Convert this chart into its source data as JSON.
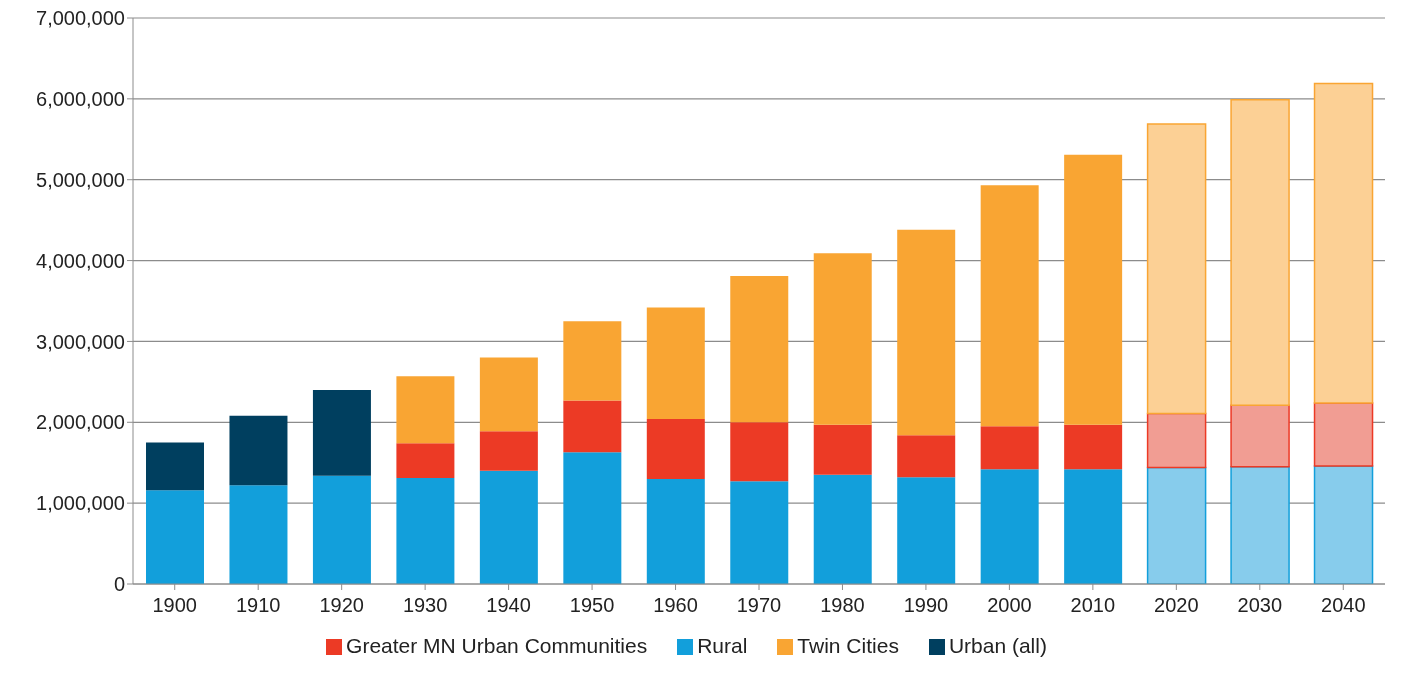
{
  "chart_data": {
    "type": "bar",
    "stacked": true,
    "categories": [
      "1900",
      "1910",
      "1920",
      "1930",
      "1940",
      "1950",
      "1960",
      "1970",
      "1980",
      "1990",
      "2000",
      "2010",
      "2020",
      "2030",
      "2040"
    ],
    "series": [
      {
        "name": "Rural",
        "color": "#129fdb",
        "colors": [
          "#129fdb",
          "#129fdb",
          "#129fdb",
          "#129fdb",
          "#129fdb",
          "#129fdb",
          "#129fdb",
          "#129fdb",
          "#129fdb",
          "#129fdb",
          "#129fdb",
          "#129fdb",
          "#87ccec",
          "#87ccec",
          "#87ccec"
        ],
        "values": [
          1160000,
          1220000,
          1340000,
          1310000,
          1400000,
          1630000,
          1300000,
          1270000,
          1350000,
          1320000,
          1420000,
          1420000,
          1440000,
          1450000,
          1460000
        ]
      },
      {
        "name": "Urban (all)",
        "color": "#003f5f",
        "values": [
          590000,
          860000,
          1060000,
          null,
          null,
          null,
          null,
          null,
          null,
          null,
          null,
          null,
          null,
          null,
          null
        ]
      },
      {
        "name": "Greater MN Urban Communities",
        "color": "#ec3a25",
        "colors": [
          "#ec3a25",
          "#ec3a25",
          "#ec3a25",
          "#ec3a25",
          "#ec3a25",
          "#ec3a25",
          "#ec3a25",
          "#ec3a25",
          "#ec3a25",
          "#ec3a25",
          "#ec3a25",
          "#ec3a25",
          "#f19d93",
          "#f19d93",
          "#f19d93"
        ],
        "values": [
          null,
          null,
          null,
          430000,
          490000,
          640000,
          740000,
          730000,
          620000,
          520000,
          530000,
          550000,
          670000,
          760000,
          780000
        ]
      },
      {
        "name": "Twin Cities",
        "color": "#f9a533",
        "colors": [
          "#f9a533",
          "#f9a533",
          "#f9a533",
          "#f9a533",
          "#f9a533",
          "#f9a533",
          "#f9a533",
          "#f9a533",
          "#f9a533",
          "#f9a533",
          "#f9a533",
          "#f9a533",
          "#fcd095",
          "#fcd095",
          "#fcd095"
        ],
        "values": [
          null,
          null,
          null,
          830000,
          910000,
          980000,
          1380000,
          1810000,
          2120000,
          2540000,
          2980000,
          3340000,
          3580000,
          3780000,
          3950000
        ]
      }
    ],
    "ylim": [
      0,
      7000000
    ],
    "yticks": [
      {
        "value": 0,
        "label": "0"
      },
      {
        "value": 1000000,
        "label": "1,000,000"
      },
      {
        "value": 2000000,
        "label": "2,000,000"
      },
      {
        "value": 3000000,
        "label": "3,000,000"
      },
      {
        "value": 4000000,
        "label": "4,000,000"
      },
      {
        "value": 5000000,
        "label": "5,000,000"
      },
      {
        "value": 6000000,
        "label": "6,000,000"
      },
      {
        "value": 7000000,
        "label": "7,000,000"
      }
    ],
    "grid": "y",
    "legend": "bottom"
  }
}
